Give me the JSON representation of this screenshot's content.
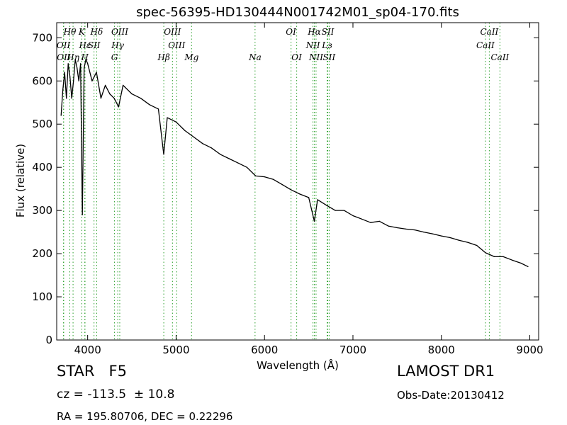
{
  "chart_data": {
    "type": "line",
    "title": "spec-56395-HD130444N001742M01_sp04-170.fits",
    "xlabel": "Wavelength (Å)",
    "ylabel": "Flux (relative)",
    "xlim": [
      3650,
      9100
    ],
    "ylim": [
      0,
      735
    ],
    "xticks": [
      4000,
      5000,
      6000,
      7000,
      8000,
      9000
    ],
    "yticks": [
      0,
      100,
      200,
      300,
      400,
      500,
      600,
      700
    ],
    "grid": false,
    "line_color": "#000000",
    "marker_color": "#2ca02c",
    "series": [
      {
        "x": [
          3700,
          3720,
          3740,
          3760,
          3780,
          3800,
          3820,
          3840,
          3860,
          3880,
          3900,
          3920,
          3940,
          3960,
          3980,
          4000,
          4050,
          4100,
          4150,
          4200,
          4250,
          4300,
          4350,
          4400,
          4500,
          4600,
          4700,
          4800,
          4860,
          4900,
          5000,
          5100,
          5200,
          5300,
          5400,
          5500,
          5600,
          5700,
          5800,
          5900,
          6000,
          6100,
          6200,
          6300,
          6400,
          6500,
          6563,
          6600,
          6700,
          6800,
          6900,
          7000,
          7100,
          7200,
          7300,
          7400,
          7500,
          7600,
          7700,
          7800,
          7900,
          8000,
          8100,
          8200,
          8300,
          8400,
          8500,
          8600,
          8700,
          8800,
          8900,
          8980
        ],
        "y": [
          520,
          580,
          620,
          560,
          640,
          610,
          560,
          600,
          650,
          630,
          600,
          640,
          290,
          630,
          650,
          640,
          600,
          620,
          560,
          590,
          570,
          560,
          540,
          590,
          570,
          560,
          545,
          535,
          430,
          515,
          505,
          485,
          470,
          455,
          445,
          430,
          420,
          410,
          400,
          380,
          378,
          372,
          360,
          348,
          338,
          330,
          275,
          325,
          312,
          300,
          300,
          288,
          280,
          272,
          275,
          264,
          260,
          257,
          255,
          250,
          246,
          241,
          237,
          231,
          226,
          219,
          202,
          193,
          193,
          185,
          178,
          170
        ]
      }
    ],
    "lines_row1": [
      {
        "label": "Hθ",
        "x": 3798
      },
      {
        "label": "K",
        "x": 3934
      },
      {
        "label": "Hδ",
        "x": 4102
      },
      {
        "label": "OIII",
        "x": 4363
      },
      {
        "label": "OIII",
        "x": 4959
      },
      {
        "label": "OI",
        "x": 6300
      },
      {
        "label": "Hα",
        "x": 6563
      },
      {
        "label": "SII",
        "x": 6716
      },
      {
        "label": "CaII",
        "x": 8542
      }
    ],
    "lines_row2": [
      {
        "label": "OII",
        "x": 3727
      },
      {
        "label": "Hε",
        "x": 3970
      },
      {
        "label": "SII",
        "x": 4072
      },
      {
        "label": "Hγ",
        "x": 4340
      },
      {
        "label": "OIII",
        "x": 5007
      },
      {
        "label": "NII",
        "x": 6548
      },
      {
        "label": "Lз",
        "x": 6708
      },
      {
        "label": "CaII",
        "x": 8498
      }
    ],
    "lines_row3": [
      {
        "label": "OII",
        "x": 3729
      },
      {
        "label": "Hη",
        "x": 3835
      },
      {
        "label": "H",
        "x": 3968
      },
      {
        "label": "G",
        "x": 4304
      },
      {
        "label": "Hβ",
        "x": 4861
      },
      {
        "label": "Mg",
        "x": 5175
      },
      {
        "label": "Na",
        "x": 5893
      },
      {
        "label": "OI",
        "x": 6364
      },
      {
        "label": "NII",
        "x": 6583
      },
      {
        "label": "SII",
        "x": 6731
      },
      {
        "label": "CaII",
        "x": 8662
      }
    ]
  },
  "info": {
    "object_class": "STAR   F5",
    "cz": "cz = -113.5  ± 10.8",
    "ra_dec": "RA = 195.80706, DEC = 0.22296",
    "survey": "LAMOST DR1",
    "obs_date": "Obs-Date:20130412"
  }
}
